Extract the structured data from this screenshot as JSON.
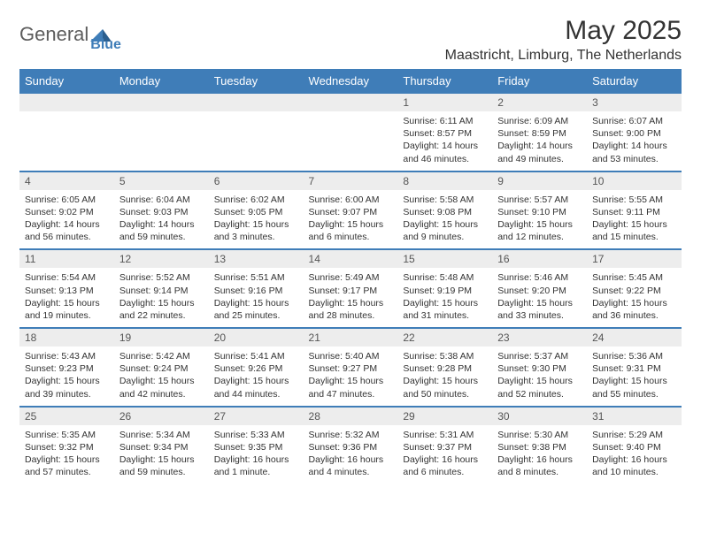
{
  "logo": {
    "text1": "General",
    "text2": "Blue",
    "tri_color": "#3f7db8"
  },
  "title": "May 2025",
  "location": "Maastricht, Limburg, The Netherlands",
  "header_bg": "#3f7db8",
  "header_fg": "#ffffff",
  "daynum_bg": "#ededed",
  "border_color": "#3f7db8",
  "body_fontsize": 10.5,
  "dayname_fontsize": 13,
  "columns": [
    "Sunday",
    "Monday",
    "Tuesday",
    "Wednesday",
    "Thursday",
    "Friday",
    "Saturday"
  ],
  "weeks": [
    [
      null,
      null,
      null,
      null,
      {
        "n": "1",
        "sr": "Sunrise: 6:11 AM",
        "ss": "Sunset: 8:57 PM",
        "dl": "Daylight: 14 hours and 46 minutes."
      },
      {
        "n": "2",
        "sr": "Sunrise: 6:09 AM",
        "ss": "Sunset: 8:59 PM",
        "dl": "Daylight: 14 hours and 49 minutes."
      },
      {
        "n": "3",
        "sr": "Sunrise: 6:07 AM",
        "ss": "Sunset: 9:00 PM",
        "dl": "Daylight: 14 hours and 53 minutes."
      }
    ],
    [
      {
        "n": "4",
        "sr": "Sunrise: 6:05 AM",
        "ss": "Sunset: 9:02 PM",
        "dl": "Daylight: 14 hours and 56 minutes."
      },
      {
        "n": "5",
        "sr": "Sunrise: 6:04 AM",
        "ss": "Sunset: 9:03 PM",
        "dl": "Daylight: 14 hours and 59 minutes."
      },
      {
        "n": "6",
        "sr": "Sunrise: 6:02 AM",
        "ss": "Sunset: 9:05 PM",
        "dl": "Daylight: 15 hours and 3 minutes."
      },
      {
        "n": "7",
        "sr": "Sunrise: 6:00 AM",
        "ss": "Sunset: 9:07 PM",
        "dl": "Daylight: 15 hours and 6 minutes."
      },
      {
        "n": "8",
        "sr": "Sunrise: 5:58 AM",
        "ss": "Sunset: 9:08 PM",
        "dl": "Daylight: 15 hours and 9 minutes."
      },
      {
        "n": "9",
        "sr": "Sunrise: 5:57 AM",
        "ss": "Sunset: 9:10 PM",
        "dl": "Daylight: 15 hours and 12 minutes."
      },
      {
        "n": "10",
        "sr": "Sunrise: 5:55 AM",
        "ss": "Sunset: 9:11 PM",
        "dl": "Daylight: 15 hours and 15 minutes."
      }
    ],
    [
      {
        "n": "11",
        "sr": "Sunrise: 5:54 AM",
        "ss": "Sunset: 9:13 PM",
        "dl": "Daylight: 15 hours and 19 minutes."
      },
      {
        "n": "12",
        "sr": "Sunrise: 5:52 AM",
        "ss": "Sunset: 9:14 PM",
        "dl": "Daylight: 15 hours and 22 minutes."
      },
      {
        "n": "13",
        "sr": "Sunrise: 5:51 AM",
        "ss": "Sunset: 9:16 PM",
        "dl": "Daylight: 15 hours and 25 minutes."
      },
      {
        "n": "14",
        "sr": "Sunrise: 5:49 AM",
        "ss": "Sunset: 9:17 PM",
        "dl": "Daylight: 15 hours and 28 minutes."
      },
      {
        "n": "15",
        "sr": "Sunrise: 5:48 AM",
        "ss": "Sunset: 9:19 PM",
        "dl": "Daylight: 15 hours and 31 minutes."
      },
      {
        "n": "16",
        "sr": "Sunrise: 5:46 AM",
        "ss": "Sunset: 9:20 PM",
        "dl": "Daylight: 15 hours and 33 minutes."
      },
      {
        "n": "17",
        "sr": "Sunrise: 5:45 AM",
        "ss": "Sunset: 9:22 PM",
        "dl": "Daylight: 15 hours and 36 minutes."
      }
    ],
    [
      {
        "n": "18",
        "sr": "Sunrise: 5:43 AM",
        "ss": "Sunset: 9:23 PM",
        "dl": "Daylight: 15 hours and 39 minutes."
      },
      {
        "n": "19",
        "sr": "Sunrise: 5:42 AM",
        "ss": "Sunset: 9:24 PM",
        "dl": "Daylight: 15 hours and 42 minutes."
      },
      {
        "n": "20",
        "sr": "Sunrise: 5:41 AM",
        "ss": "Sunset: 9:26 PM",
        "dl": "Daylight: 15 hours and 44 minutes."
      },
      {
        "n": "21",
        "sr": "Sunrise: 5:40 AM",
        "ss": "Sunset: 9:27 PM",
        "dl": "Daylight: 15 hours and 47 minutes."
      },
      {
        "n": "22",
        "sr": "Sunrise: 5:38 AM",
        "ss": "Sunset: 9:28 PM",
        "dl": "Daylight: 15 hours and 50 minutes."
      },
      {
        "n": "23",
        "sr": "Sunrise: 5:37 AM",
        "ss": "Sunset: 9:30 PM",
        "dl": "Daylight: 15 hours and 52 minutes."
      },
      {
        "n": "24",
        "sr": "Sunrise: 5:36 AM",
        "ss": "Sunset: 9:31 PM",
        "dl": "Daylight: 15 hours and 55 minutes."
      }
    ],
    [
      {
        "n": "25",
        "sr": "Sunrise: 5:35 AM",
        "ss": "Sunset: 9:32 PM",
        "dl": "Daylight: 15 hours and 57 minutes."
      },
      {
        "n": "26",
        "sr": "Sunrise: 5:34 AM",
        "ss": "Sunset: 9:34 PM",
        "dl": "Daylight: 15 hours and 59 minutes."
      },
      {
        "n": "27",
        "sr": "Sunrise: 5:33 AM",
        "ss": "Sunset: 9:35 PM",
        "dl": "Daylight: 16 hours and 1 minute."
      },
      {
        "n": "28",
        "sr": "Sunrise: 5:32 AM",
        "ss": "Sunset: 9:36 PM",
        "dl": "Daylight: 16 hours and 4 minutes."
      },
      {
        "n": "29",
        "sr": "Sunrise: 5:31 AM",
        "ss": "Sunset: 9:37 PM",
        "dl": "Daylight: 16 hours and 6 minutes."
      },
      {
        "n": "30",
        "sr": "Sunrise: 5:30 AM",
        "ss": "Sunset: 9:38 PM",
        "dl": "Daylight: 16 hours and 8 minutes."
      },
      {
        "n": "31",
        "sr": "Sunrise: 5:29 AM",
        "ss": "Sunset: 9:40 PM",
        "dl": "Daylight: 16 hours and 10 minutes."
      }
    ]
  ]
}
